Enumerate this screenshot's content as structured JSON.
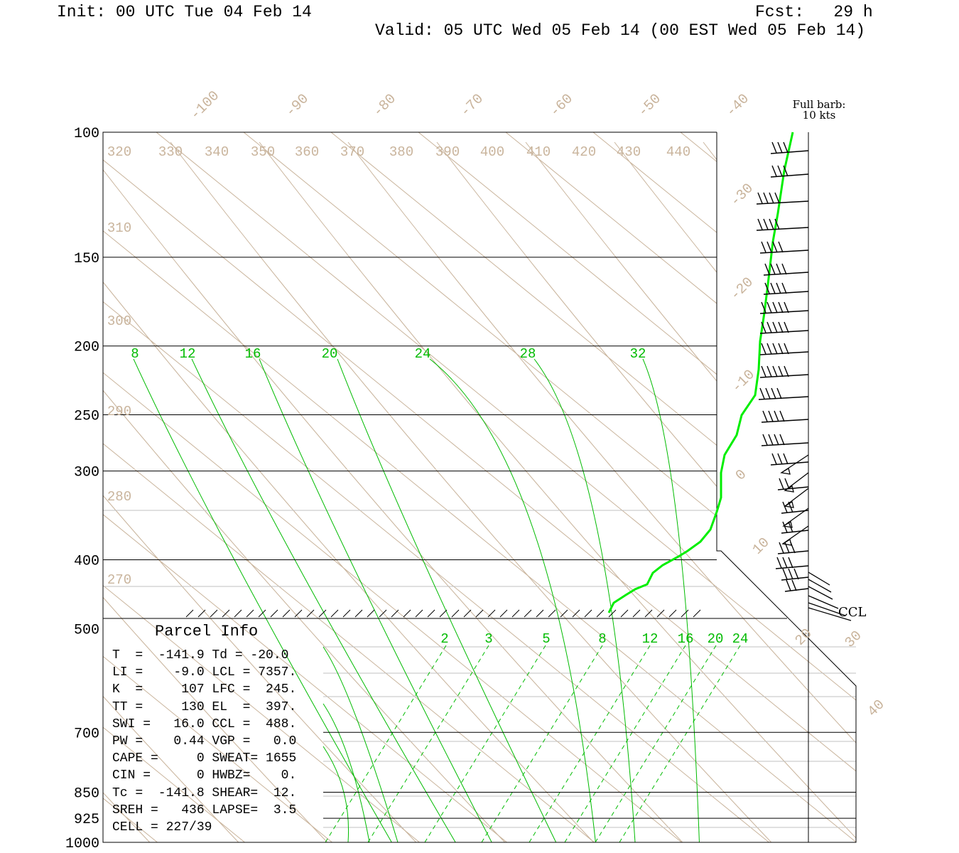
{
  "header": {
    "init": "Init: 00 UTC Tue 04 Feb 14",
    "fcst": "Fcst:   29 h",
    "valid": "Valid: 05 UTC Wed 05 Feb 14 (00 EST Wed 05 Feb 14)"
  },
  "colors": {
    "isotherm": "#c9b49c",
    "mixing_ratio": "#00bb00",
    "sounding": "#00ee00",
    "axis": "#000000",
    "ground_grid": "#c0c0c0"
  },
  "chart_data": {
    "type": "skew-t",
    "pressure_labels": [
      "100",
      "150",
      "200",
      "250",
      "300",
      "400",
      "500",
      "700",
      "850",
      "925",
      "1000"
    ],
    "pressure_levels": [
      100,
      150,
      200,
      250,
      300,
      400,
      500,
      700,
      850,
      925,
      1000
    ],
    "temperature_labels": [
      "-100",
      "-90",
      "-80",
      "-70",
      "-60",
      "-50",
      "-40",
      "-30",
      "-20",
      "-10",
      "0",
      "10",
      "20",
      "30",
      "40"
    ],
    "theta_labels_top": [
      "320",
      "330",
      "340",
      "350",
      "360",
      "370",
      "380",
      "390",
      "400",
      "410",
      "420",
      "430",
      "440"
    ],
    "theta_labels_left": [
      "310",
      "300",
      "290",
      "280",
      "270"
    ],
    "mixing_ratio_upper_labels": [
      "8",
      "12",
      "16",
      "20",
      "24",
      "28",
      "32"
    ],
    "mixing_ratio_lower_labels": [
      "2",
      "3",
      "5",
      "8",
      "12",
      "16",
      "20",
      "24"
    ],
    "wind_legend_title": "Full barb:",
    "wind_legend_value": "10 kts",
    "ccl_label": "CCL"
  },
  "parcel": {
    "title": "Parcel Info",
    "lines": [
      "T  =  -141.9 Td = -20.0",
      "LI =    -9.0 LCL = 7357.",
      "K  =     107 LFC =  245.",
      "TT =     130 EL  =  397.",
      "SWI =   16.0 CCL =  488.",
      "PW =    0.44 VGP =   0.0",
      "CAPE =     0 SWEAT= 1655",
      "CIN =      0 HWBZ=    0.",
      "Tc =  -141.8 SHEAR=  12.",
      "SREH =   436 LAPSE=  3.5",
      "CELL = 227/39"
    ]
  }
}
